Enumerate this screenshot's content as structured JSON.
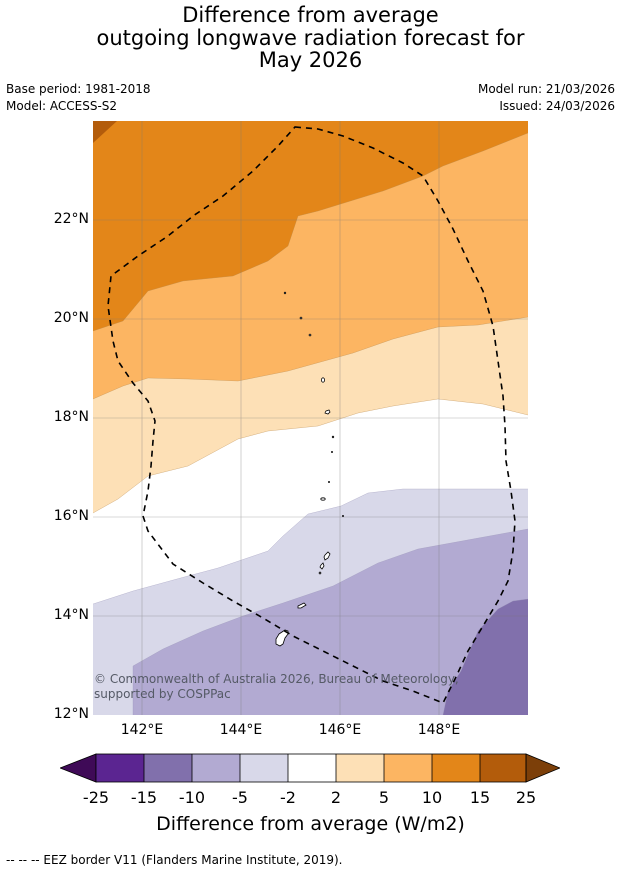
{
  "title_lines": [
    "Difference from average",
    "outgoing longwave radiation forecast for",
    "May 2026"
  ],
  "meta": {
    "base_period": "Base period: 1981-2018",
    "model": "Model: ACCESS-S2",
    "model_run": "Model run: 21/03/2026",
    "issued": "Issued: 24/03/2026"
  },
  "map": {
    "lat_labels": [
      "22°N",
      "20°N",
      "18°N",
      "16°N",
      "14°N",
      "12°N"
    ],
    "lon_labels": [
      "142°E",
      "144°E",
      "146°E",
      "148°E"
    ],
    "copyright": "© Commonwealth of Australia 2026, Bureau of Meteorology, supported by COSPPac"
  },
  "colorbar": {
    "ticks": [
      "-25",
      "-15",
      "-10",
      "-5",
      "-2",
      "2",
      "5",
      "10",
      "15",
      "25"
    ],
    "colors": {
      "below_min": "#3f0a57",
      "c1": "#5b2591",
      "c2": "#8170ac",
      "c3": "#b2aad2",
      "c4": "#d8d8e9",
      "c5": "#ffffff",
      "c6": "#fde0b6",
      "c7": "#fcb562",
      "c8": "#e38619",
      "c9": "#b35c0b",
      "above_max": "#7c3f09"
    },
    "label": "Difference from average (W/m2)"
  },
  "legend": {
    "eez": "--  --  -- EEZ border V11 (Flanders Marine Institute, 2019)."
  }
}
